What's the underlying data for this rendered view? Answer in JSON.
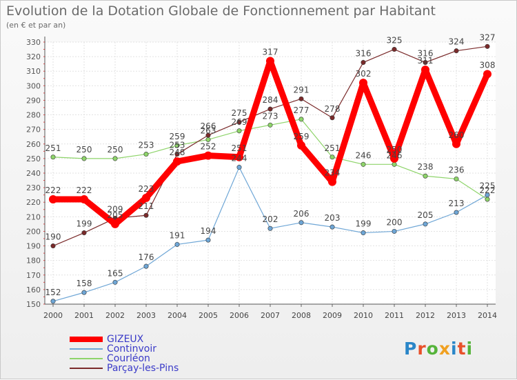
{
  "title": "Evolution de la Dotation Globale de Fonctionnement par Habitant",
  "subtitle": "(en € et par an)",
  "logo": {
    "text": "Proxiti",
    "colors": [
      "#2a86c8",
      "#e8502a",
      "#55b33a",
      "#f0a020",
      "#2a86c8",
      "#e8502a",
      "#55b33a"
    ]
  },
  "chart_data": {
    "type": "line",
    "x": [
      "2000",
      "2001",
      "2002",
      "2003",
      "2004",
      "2005",
      "2006",
      "2007",
      "2008",
      "2009",
      "2010",
      "2011",
      "2012",
      "2013",
      "2014"
    ],
    "ylim": [
      150,
      330
    ],
    "yticks": [
      150,
      160,
      170,
      180,
      190,
      200,
      210,
      220,
      230,
      240,
      250,
      260,
      270,
      280,
      290,
      300,
      310,
      320,
      330
    ],
    "grid": true,
    "legend": "bottom-left",
    "series": [
      {
        "name": "GIZEUX",
        "color": "#ff0000",
        "width": 9,
        "values": [
          222,
          222,
          205,
          223,
          248,
          252,
          251,
          317,
          259,
          234,
          302,
          250,
          311,
          260,
          308
        ]
      },
      {
        "name": "Continvoir",
        "color": "#6ea6d6",
        "width": 1.2,
        "values": [
          152,
          158,
          165,
          176,
          191,
          194,
          244,
          202,
          206,
          203,
          199,
          200,
          205,
          213,
          225
        ]
      },
      {
        "name": "Courléon",
        "color": "#8ed46a",
        "width": 1.2,
        "values": [
          251,
          250,
          250,
          253,
          259,
          263,
          269,
          273,
          277,
          251,
          246,
          246,
          238,
          236,
          222
        ]
      },
      {
        "name": "Parçay-les-Pins",
        "color": "#7a2a2a",
        "width": 1.2,
        "values": [
          190,
          199,
          209,
          211,
          253,
          266,
          275,
          284,
          291,
          278,
          316,
          325,
          316,
          324,
          327
        ]
      }
    ]
  }
}
